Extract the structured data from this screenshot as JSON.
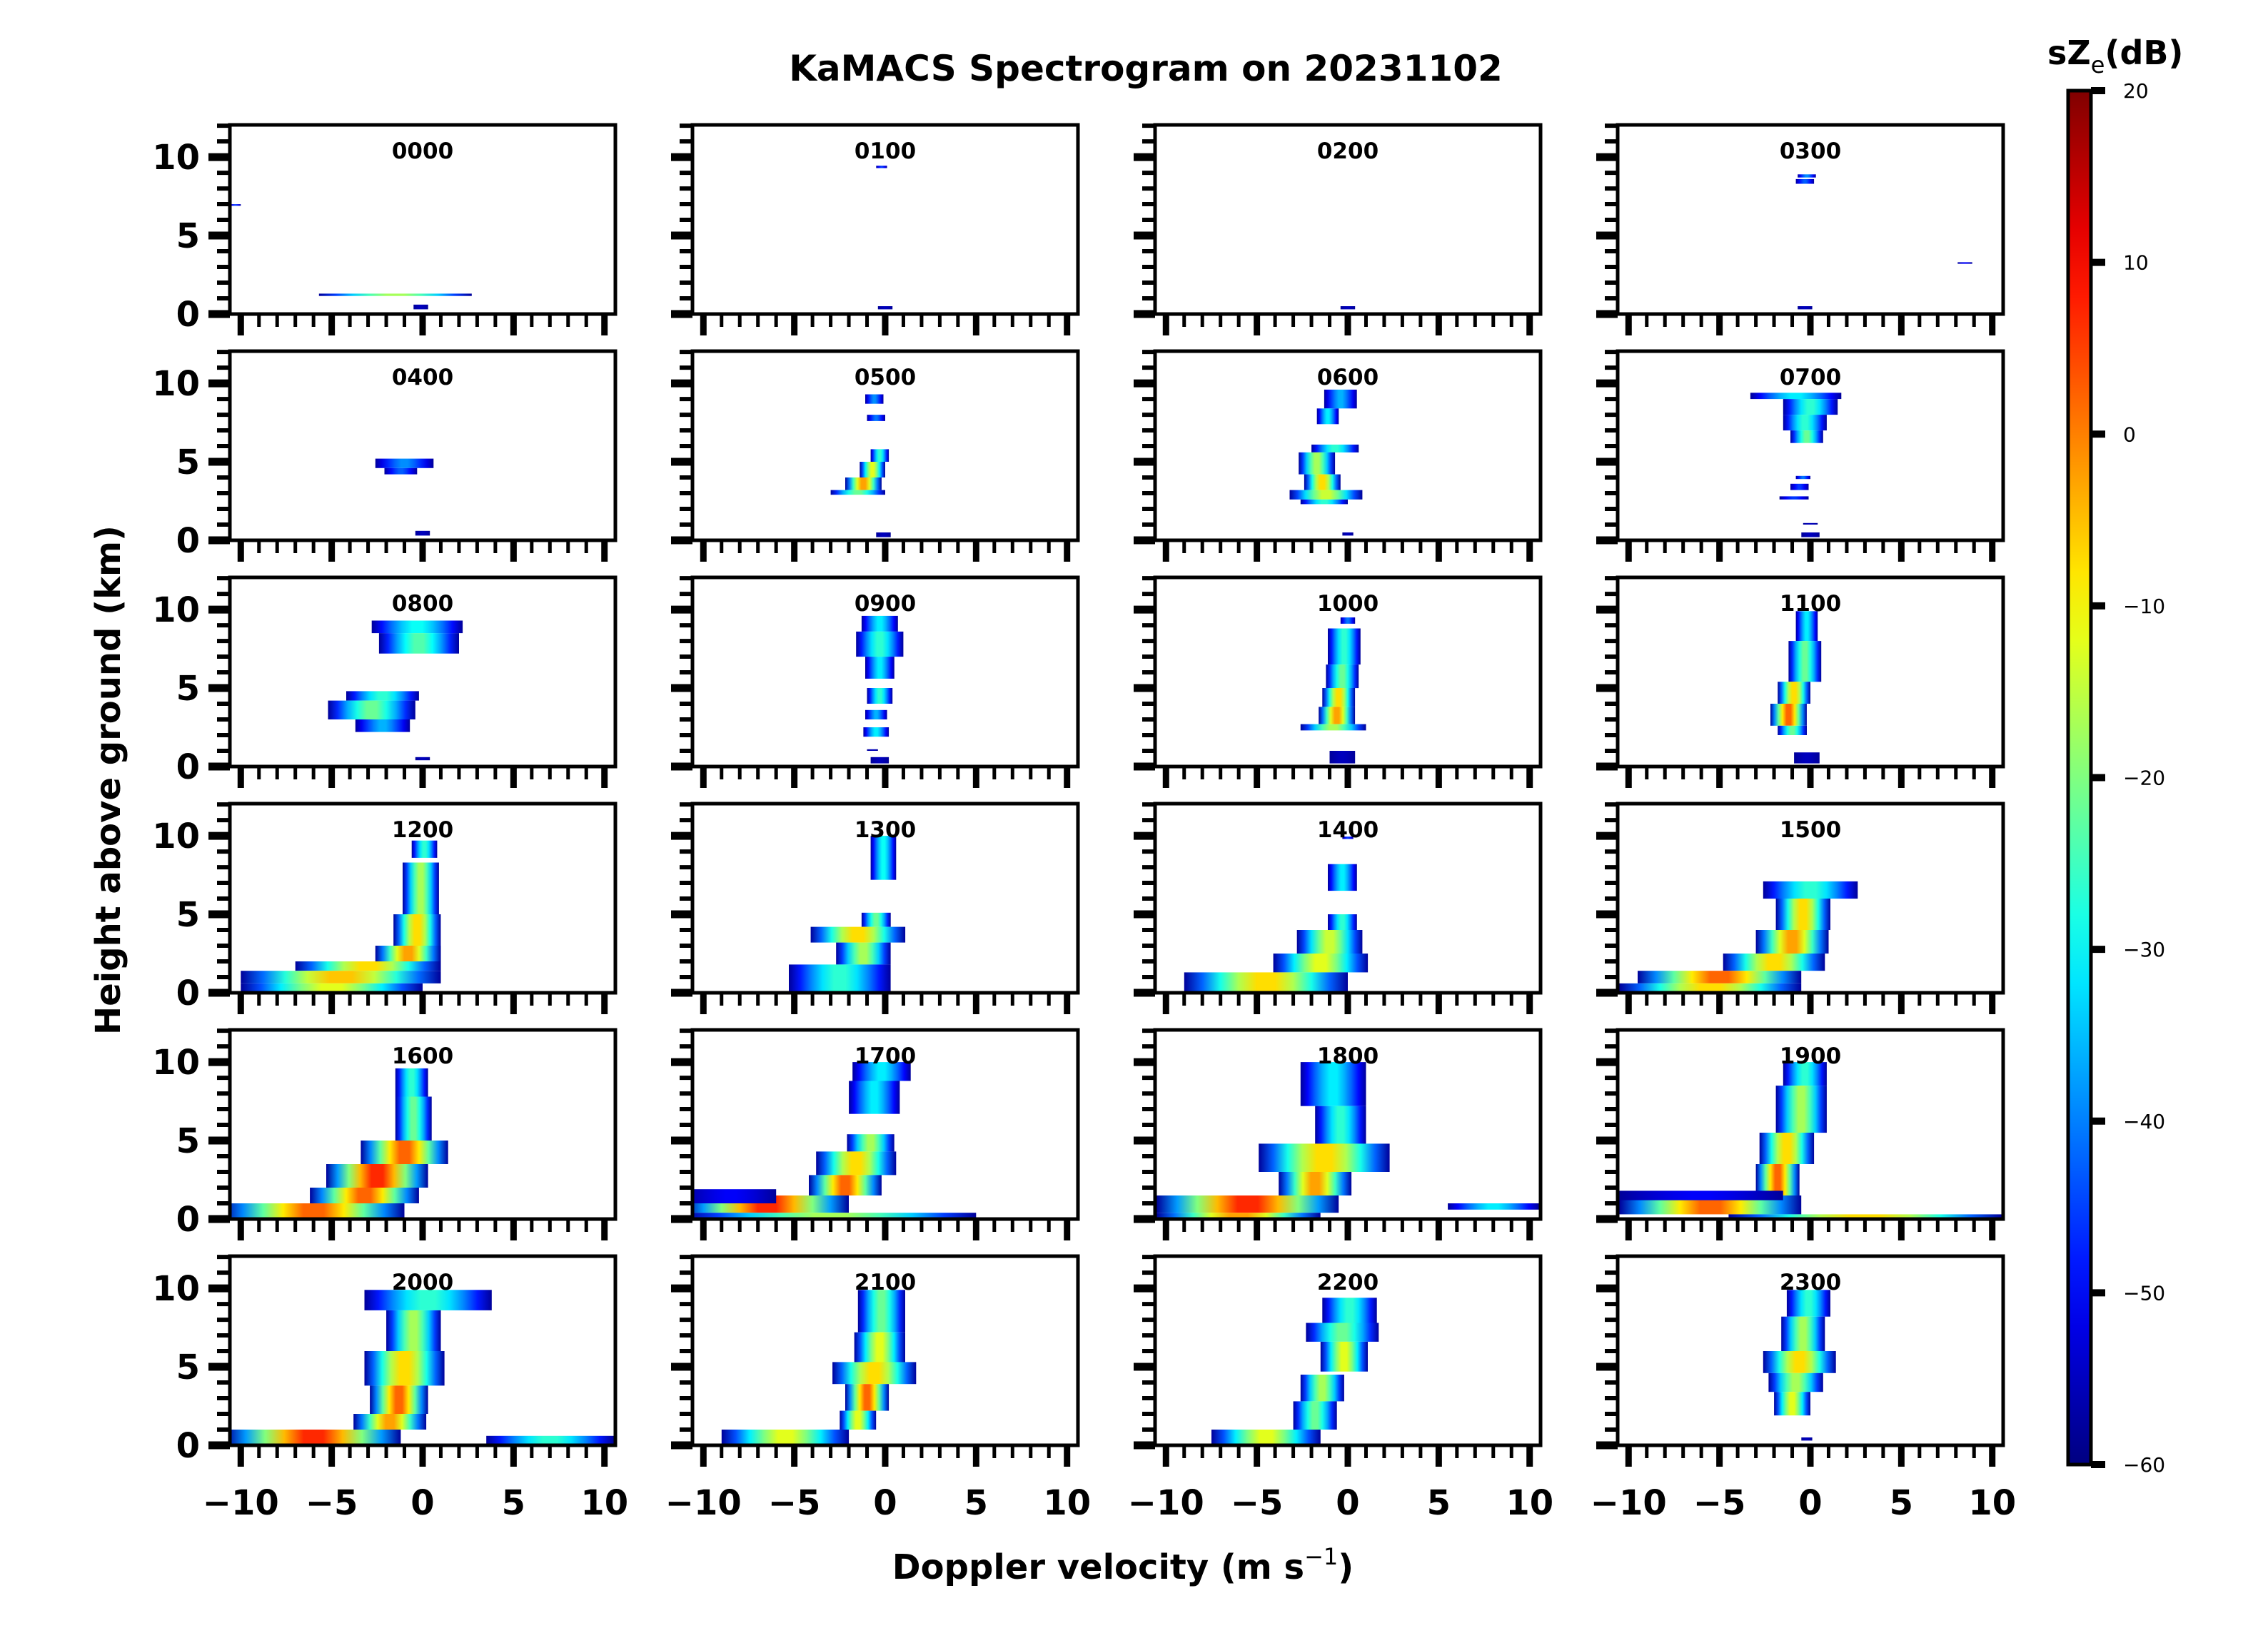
{
  "chart_data": {
    "type": "heatmap",
    "title": "KaMACS Spectrogram on 20231102",
    "xlabel": "Doppler velocity (m s",
    "xlabel_superscript": "−1",
    "xlabel_close": ")",
    "ylabel": "Height above ground (km)",
    "xlim": [
      -10.6,
      10.6
    ],
    "ylim": [
      0,
      12
    ],
    "xticks": [
      -10,
      -5,
      0,
      5,
      10
    ],
    "xtick_labels": [
      "−10",
      "−5",
      "0",
      "5",
      "10"
    ],
    "yticks": [
      0,
      5,
      10
    ],
    "ytick_labels": [
      "0",
      "5",
      "10"
    ],
    "x_minor_step": 1,
    "y_minor_step": 1,
    "colorbar": {
      "label_main": "sZ",
      "label_sub": "e",
      "label_unit": "(dB)",
      "range": [
        -60,
        20
      ],
      "ticks": [
        20,
        10,
        0,
        -10,
        -20,
        -30,
        -40,
        -50,
        -60
      ],
      "tick_labels": [
        "20",
        "10",
        "0",
        "−10",
        "−20",
        "−30",
        "−40",
        "−50",
        "−60"
      ],
      "colormap": "jet"
    },
    "panels_note_layer_format": "each layer: [z_bottom_km, z_top_km, center_velocity, half_width, peak_dB]",
    "panels": [
      {
        "label": "0000",
        "layers": [
          [
            1.15,
            1.3,
            -1.5,
            4.2,
            -15
          ],
          [
            0.3,
            0.6,
            -0.1,
            0.4,
            -55
          ],
          [
            6.9,
            7.0,
            -10.3,
            0.3,
            -45
          ]
        ]
      },
      {
        "label": "0100",
        "layers": [
          [
            9.3,
            9.45,
            -0.2,
            0.3,
            -45
          ],
          [
            0.3,
            0.5,
            0,
            0.4,
            -55
          ]
        ]
      },
      {
        "label": "0200",
        "layers": [
          [
            0.3,
            0.5,
            0,
            0.4,
            -55
          ]
        ]
      },
      {
        "label": "0300",
        "layers": [
          [
            8.7,
            8.9,
            -0.2,
            0.5,
            -38
          ],
          [
            8.3,
            8.6,
            -0.3,
            0.5,
            -42
          ],
          [
            0.3,
            0.5,
            -0.3,
            0.4,
            -55
          ],
          [
            3.2,
            3.3,
            8.5,
            0.4,
            -50
          ]
        ]
      },
      {
        "label": "0400",
        "layers": [
          [
            4.6,
            5.2,
            -1.0,
            1.6,
            -38
          ],
          [
            4.2,
            4.6,
            -1.2,
            0.9,
            -42
          ],
          [
            0.3,
            0.6,
            0,
            0.4,
            -55
          ]
        ]
      },
      {
        "label": "0500",
        "layers": [
          [
            8.7,
            9.3,
            -0.6,
            0.5,
            -38
          ],
          [
            7.6,
            8.0,
            -0.5,
            0.5,
            -40
          ],
          [
            5.0,
            5.8,
            -0.3,
            0.5,
            -25
          ],
          [
            4.0,
            5.0,
            -0.7,
            0.7,
            -10
          ],
          [
            3.2,
            4.0,
            -1.2,
            1.0,
            0
          ],
          [
            2.9,
            3.2,
            -1.5,
            1.5,
            -20
          ],
          [
            0.2,
            0.5,
            -0.1,
            0.4,
            -55
          ]
        ]
      },
      {
        "label": "0600",
        "layers": [
          [
            8.4,
            9.6,
            -0.4,
            0.9,
            -35
          ],
          [
            7.4,
            8.4,
            -1.1,
            0.6,
            -30
          ],
          [
            5.6,
            6.1,
            -0.7,
            1.3,
            -25
          ],
          [
            4.2,
            5.6,
            -1.7,
            1.0,
            -15
          ],
          [
            3.2,
            4.2,
            -1.4,
            1.0,
            -5
          ],
          [
            2.6,
            3.2,
            -1.2,
            2.0,
            -12
          ],
          [
            2.3,
            2.6,
            -1.3,
            1.3,
            -25
          ],
          [
            0.3,
            0.5,
            0,
            0.3,
            -55
          ]
        ]
      },
      {
        "label": "0700",
        "layers": [
          [
            9.0,
            9.4,
            -0.8,
            2.5,
            -30
          ],
          [
            8.0,
            9.0,
            0,
            1.5,
            -25
          ],
          [
            7.0,
            8.0,
            -0.3,
            1.2,
            -25
          ],
          [
            6.2,
            7.0,
            -0.2,
            0.9,
            -20
          ],
          [
            3.9,
            4.1,
            -0.4,
            0.4,
            -40
          ],
          [
            3.2,
            3.6,
            -0.6,
            0.5,
            -45
          ],
          [
            2.6,
            2.8,
            -0.9,
            0.8,
            -45
          ],
          [
            1.0,
            1.1,
            0,
            0.4,
            -55
          ],
          [
            0.2,
            0.5,
            0,
            0.5,
            -55
          ]
        ]
      },
      {
        "label": "0800",
        "layers": [
          [
            8.5,
            9.3,
            -0.3,
            2.5,
            -28
          ],
          [
            7.2,
            8.5,
            -0.2,
            2.2,
            -22
          ],
          [
            4.2,
            4.8,
            -2.2,
            2.0,
            -25
          ],
          [
            3.0,
            4.2,
            -2.8,
            2.4,
            -20
          ],
          [
            2.2,
            3.0,
            -2.2,
            1.5,
            -35
          ],
          [
            0.4,
            0.6,
            0,
            0.4,
            -55
          ]
        ]
      },
      {
        "label": "0900",
        "layers": [
          [
            8.6,
            9.6,
            -0.3,
            1.0,
            -30
          ],
          [
            7.0,
            8.6,
            -0.3,
            1.3,
            -25
          ],
          [
            5.6,
            7.0,
            -0.3,
            0.8,
            -30
          ],
          [
            4.0,
            5.0,
            -0.3,
            0.7,
            -25
          ],
          [
            3.0,
            3.6,
            -0.5,
            0.6,
            -35
          ],
          [
            1.9,
            2.5,
            -0.5,
            0.7,
            -30
          ],
          [
            1.0,
            1.1,
            -0.7,
            0.3,
            -55
          ],
          [
            0.2,
            0.6,
            -0.3,
            0.5,
            -55
          ]
        ]
      },
      {
        "label": "1000",
        "layers": [
          [
            9.1,
            9.5,
            0,
            0.4,
            -40
          ],
          [
            6.5,
            8.8,
            -0.2,
            0.9,
            -25
          ],
          [
            5.0,
            6.5,
            -0.3,
            0.9,
            -20
          ],
          [
            3.8,
            5.0,
            -0.5,
            0.9,
            -5
          ],
          [
            2.7,
            3.8,
            -0.6,
            1.0,
            0
          ],
          [
            2.3,
            2.7,
            -0.8,
            1.8,
            -15
          ],
          [
            0.2,
            1.0,
            -0.3,
            0.7,
            -55
          ]
        ]
      },
      {
        "label": "1100",
        "layers": [
          [
            8.0,
            9.9,
            -0.2,
            0.6,
            -30
          ],
          [
            5.4,
            8.0,
            -0.3,
            0.9,
            -20
          ],
          [
            4.0,
            5.4,
            -0.9,
            0.9,
            -5
          ],
          [
            2.6,
            4.0,
            -1.2,
            1.0,
            5
          ],
          [
            2.0,
            2.6,
            -1.0,
            0.8,
            -20
          ],
          [
            0.2,
            0.9,
            -0.2,
            0.7,
            -55
          ]
        ]
      },
      {
        "label": "1200",
        "layers": [
          [
            8.6,
            9.7,
            0.1,
            0.7,
            -25
          ],
          [
            5.0,
            8.3,
            -0.1,
            1.0,
            -15
          ],
          [
            3.0,
            5.0,
            -0.3,
            1.3,
            -5
          ],
          [
            2.0,
            3.0,
            -0.8,
            1.8,
            0
          ],
          [
            1.4,
            2.0,
            -3.0,
            4.0,
            -5
          ],
          [
            0.6,
            1.4,
            -4.5,
            5.5,
            -3
          ],
          [
            0.1,
            0.6,
            -5.0,
            5.0,
            -10
          ]
        ]
      },
      {
        "label": "1300",
        "layers": [
          [
            7.2,
            10.0,
            -0.1,
            0.7,
            -28
          ],
          [
            4.2,
            5.1,
            -0.5,
            0.8,
            -20
          ],
          [
            3.2,
            4.2,
            -1.5,
            2.6,
            -5
          ],
          [
            1.8,
            3.2,
            -1.2,
            1.5,
            -15
          ],
          [
            0.1,
            1.8,
            -2.5,
            2.8,
            -25
          ]
        ]
      },
      {
        "label": "1400",
        "layers": [
          [
            9.8,
            9.95,
            0,
            0.3,
            -45
          ],
          [
            6.5,
            8.2,
            -0.3,
            0.8,
            -30
          ],
          [
            4.0,
            5.0,
            -0.3,
            0.8,
            -25
          ],
          [
            2.5,
            4.0,
            -1.0,
            1.8,
            -12
          ],
          [
            1.3,
            2.5,
            -1.5,
            2.6,
            -10
          ],
          [
            0.1,
            1.3,
            -4.5,
            4.5,
            -5
          ]
        ]
      },
      {
        "label": "1500",
        "layers": [
          [
            6.0,
            7.1,
            0,
            2.6,
            -25
          ],
          [
            4.0,
            6.0,
            -0.4,
            1.5,
            -5
          ],
          [
            2.5,
            4.0,
            -1.0,
            2.0,
            0
          ],
          [
            1.4,
            2.5,
            -2.0,
            2.8,
            -5
          ],
          [
            0.6,
            1.4,
            -5.0,
            4.5,
            5
          ],
          [
            0.05,
            0.6,
            -5.5,
            5.0,
            -5
          ]
        ]
      },
      {
        "label": "1600",
        "layers": [
          [
            7.8,
            9.6,
            -0.6,
            0.9,
            -25
          ],
          [
            5.0,
            7.8,
            -0.5,
            1.0,
            -20
          ],
          [
            3.5,
            5.0,
            -1.0,
            2.4,
            5
          ],
          [
            2.0,
            3.5,
            -2.5,
            2.8,
            10
          ],
          [
            1.0,
            2.0,
            -3.2,
            3.0,
            5
          ],
          [
            0.1,
            1.0,
            -6.0,
            5.0,
            5
          ]
        ]
      },
      {
        "label": "1700",
        "layers": [
          [
            8.8,
            10.0,
            -0.2,
            1.6,
            -30
          ],
          [
            6.7,
            8.8,
            -0.6,
            1.4,
            -30
          ],
          [
            4.3,
            5.4,
            -0.8,
            1.3,
            -15
          ],
          [
            2.8,
            4.3,
            -1.6,
            2.2,
            -5
          ],
          [
            1.5,
            2.8,
            -2.2,
            2.0,
            5
          ],
          [
            0.4,
            1.5,
            -6.5,
            4.5,
            10
          ],
          [
            0.1,
            0.4,
            -3.0,
            8.0,
            -15
          ],
          [
            1.0,
            1.9,
            -8.5,
            2.5,
            -50
          ]
        ]
      },
      {
        "label": "1800",
        "layers": [
          [
            7.2,
            10.0,
            -0.8,
            1.8,
            -30
          ],
          [
            4.8,
            7.2,
            -0.4,
            1.4,
            -25
          ],
          [
            3.0,
            4.8,
            -1.3,
            3.6,
            -5
          ],
          [
            1.5,
            3.0,
            -1.8,
            2.0,
            0
          ],
          [
            0.4,
            1.5,
            -5.5,
            5.0,
            10
          ],
          [
            0.1,
            0.4,
            -6.0,
            4.5,
            0
          ],
          [
            0.6,
            1.0,
            8.0,
            2.5,
            -30
          ]
        ]
      },
      {
        "label": "1900",
        "layers": [
          [
            8.5,
            10.0,
            -0.3,
            1.2,
            -25
          ],
          [
            5.5,
            8.5,
            -0.5,
            1.4,
            -15
          ],
          [
            3.5,
            5.5,
            -1.3,
            1.5,
            -5
          ],
          [
            1.5,
            3.5,
            -1.8,
            1.2,
            5
          ],
          [
            0.3,
            1.5,
            -5.5,
            5.0,
            5
          ],
          [
            0.05,
            0.3,
            3.0,
            7.5,
            -5
          ],
          [
            1.2,
            1.8,
            -6.0,
            4.5,
            -50
          ]
        ]
      },
      {
        "label": "2000",
        "layers": [
          [
            8.6,
            9.9,
            0.3,
            3.5,
            -25
          ],
          [
            6.0,
            8.6,
            -0.5,
            1.5,
            -15
          ],
          [
            3.8,
            6.0,
            -1.0,
            2.2,
            -5
          ],
          [
            2.0,
            3.8,
            -1.3,
            1.6,
            5
          ],
          [
            1.0,
            2.0,
            -1.8,
            2.0,
            0
          ],
          [
            0.1,
            1.0,
            -6.0,
            4.8,
            10
          ],
          [
            0.1,
            0.6,
            7.0,
            3.5,
            -25
          ]
        ]
      },
      {
        "label": "2100",
        "layers": [
          [
            7.2,
            9.9,
            -0.2,
            1.3,
            -20
          ],
          [
            5.3,
            7.2,
            -0.3,
            1.4,
            -10
          ],
          [
            3.9,
            5.3,
            -0.6,
            2.3,
            -5
          ],
          [
            2.2,
            3.9,
            -1.0,
            1.2,
            5
          ],
          [
            1.0,
            2.2,
            -1.5,
            1.0,
            -10
          ],
          [
            0.1,
            1.0,
            -5.5,
            3.5,
            -10
          ]
        ]
      },
      {
        "label": "2200",
        "layers": [
          [
            7.8,
            9.4,
            0.1,
            1.5,
            -25
          ],
          [
            6.6,
            7.8,
            -0.3,
            2.0,
            -20
          ],
          [
            4.7,
            6.6,
            -0.2,
            1.3,
            -10
          ],
          [
            2.8,
            4.5,
            -1.4,
            1.2,
            -15
          ],
          [
            1.0,
            2.8,
            -1.8,
            1.2,
            -20
          ],
          [
            0.1,
            1.0,
            -4.5,
            3.0,
            -10
          ]
        ]
      },
      {
        "label": "2300",
        "layers": [
          [
            8.2,
            9.9,
            -0.1,
            1.2,
            -25
          ],
          [
            6.0,
            8.2,
            -0.4,
            1.2,
            -15
          ],
          [
            4.6,
            6.0,
            -0.6,
            2.0,
            -5
          ],
          [
            3.4,
            4.6,
            -0.8,
            1.5,
            -15
          ],
          [
            1.9,
            3.4,
            -1.0,
            1.0,
            -10
          ],
          [
            0.3,
            0.5,
            -0.2,
            0.3,
            -55
          ]
        ]
      }
    ]
  }
}
